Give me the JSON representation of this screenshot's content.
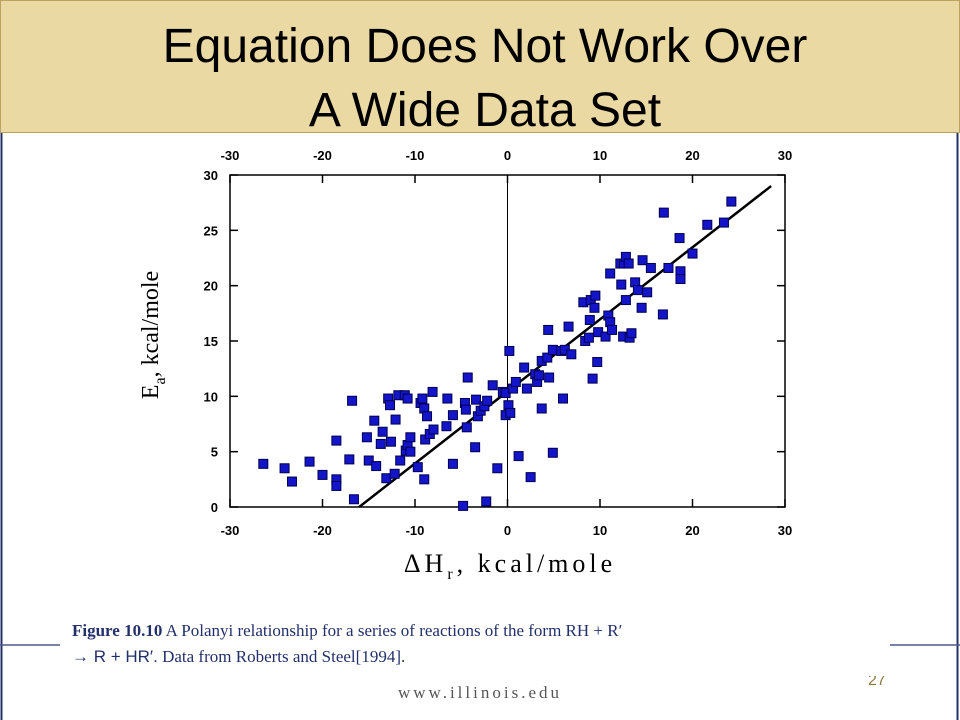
{
  "slide": {
    "title": [
      "Equation Does Not Work Over",
      "A Wide Data Set"
    ],
    "footer": "www.illinois.edu",
    "page_number": "27",
    "caption": {
      "label": "Figure 10.10",
      "line1": " A Polanyi relationship for a series of reactions of the form RH + R′",
      "line2_symbol": "→ R + HR′.",
      "line2": " Data from Roberts and Steel[1994]."
    }
  },
  "chart_data": {
    "type": "scatter",
    "xlabel": {
      "main": "ΔH",
      "sub": "r",
      "rest": ", kcal/mole"
    },
    "ylabel": {
      "main": "E",
      "sub": "a",
      "rest": ", kcal/mole"
    },
    "xlim": [
      -30,
      30
    ],
    "xticks": [
      -30,
      -20,
      -10,
      0,
      10,
      20,
      30
    ],
    "ylim": [
      0,
      30
    ],
    "yticks": [
      0,
      5,
      10,
      15,
      20,
      25,
      30
    ],
    "color": "#1414c8",
    "x": [
      -26.4,
      -24.1,
      -23.3,
      -21.4,
      -20.0,
      -18.5,
      -18.5,
      -18.5,
      -17.1,
      -16.8,
      -16.6,
      -15.2,
      -15.0,
      -14.4,
      -14.2,
      -13.7,
      -13.5,
      -13.1,
      -12.9,
      -12.7,
      -12.6,
      -12.2,
      -12.1,
      -11.8,
      -11.6,
      -11.1,
      -10.8,
      -11.0,
      -10.8,
      -10.5,
      -10.5,
      -9.7,
      -9.4,
      -9.2,
      -9.0,
      -8.9,
      -9.0,
      -8.7,
      -8.4,
      -8.1,
      -8.0,
      -6.6,
      -6.5,
      -5.9,
      -5.9,
      -4.8,
      -4.6,
      -4.5,
      -4.3,
      -4.4,
      -3.5,
      -3.4,
      -3.2,
      -2.9,
      -2.5,
      -2.3,
      -2.2,
      -1.6,
      -1.1,
      -0.5,
      -0.2,
      -0.2,
      0.1,
      0.3,
      0.2,
      0.6,
      0.9,
      1.2,
      1.8,
      2.1,
      2.5,
      3.0,
      3.2,
      3.4,
      3.7,
      3.7,
      4.3,
      4.4,
      4.5,
      4.9,
      4.9,
      5.8,
      6.0,
      6.2,
      6.6,
      6.9,
      8.2,
      8.4,
      8.8,
      8.9,
      9.0,
      9.2,
      9.4,
      9.5,
      9.7,
      9.8,
      10.6,
      10.9,
      11.1,
      11.1,
      11.3,
      12.2,
      12.3,
      12.6,
      12.5,
      12.8,
      12.8,
      13.1,
      13.2,
      13.4,
      13.8,
      14.1,
      14.6,
      15.1,
      15.5,
      16.9,
      16.8,
      17.4,
      18.6,
      18.7,
      18.7,
      20.0,
      21.6,
      23.4,
      24.2,
      14.5
    ],
    "values": [
      3.9,
      3.5,
      2.3,
      4.1,
      2.9,
      2.5,
      1.9,
      6.0,
      4.3,
      9.6,
      0.7,
      6.3,
      4.2,
      7.8,
      3.7,
      5.7,
      6.8,
      2.6,
      9.8,
      9.2,
      5.9,
      3.0,
      7.9,
      10.1,
      4.2,
      10.1,
      9.8,
      5.1,
      5.6,
      6.3,
      5.0,
      3.6,
      9.4,
      9.8,
      8.9,
      6.1,
      2.5,
      8.2,
      6.6,
      10.4,
      7.0,
      7.3,
      9.8,
      3.9,
      8.3,
      0.1,
      9.4,
      8.8,
      11.7,
      7.2,
      5.4,
      9.7,
      8.2,
      8.7,
      9.1,
      0.5,
      9.6,
      11.0,
      3.5,
      10.4,
      10.3,
      8.3,
      9.2,
      8.5,
      14.1,
      10.7,
      11.3,
      4.6,
      12.6,
      10.7,
      2.7,
      12.0,
      11.3,
      11.9,
      8.9,
      13.2,
      13.5,
      16.0,
      11.7,
      4.9,
      14.2,
      14.1,
      9.8,
      14.2,
      16.3,
      13.8,
      18.5,
      15.0,
      15.3,
      16.9,
      18.7,
      11.6,
      18.0,
      19.1,
      13.1,
      15.8,
      15.4,
      17.3,
      16.7,
      21.1,
      16.0,
      22.0,
      20.1,
      22.0,
      15.4,
      22.6,
      18.7,
      22.0,
      15.3,
      15.7,
      20.3,
      19.6,
      22.3,
      19.4,
      21.6,
      26.6,
      17.4,
      21.6,
      24.3,
      21.3,
      20.6,
      22.9,
      25.5,
      25.7,
      27.6,
      18.0
    ],
    "fit_line": {
      "x": [
        -16.5,
        28.5
      ],
      "values": [
        -0.3,
        29.0
      ]
    }
  }
}
